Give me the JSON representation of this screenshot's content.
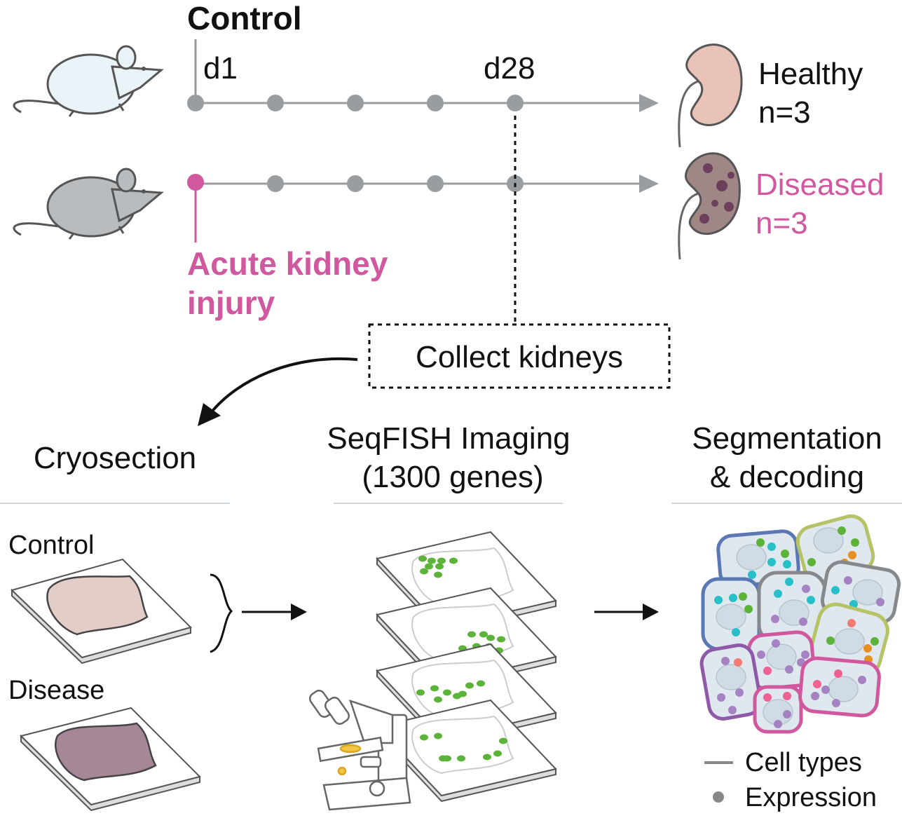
{
  "timeline": {
    "control_label": "Control",
    "day_start": "d1",
    "day_end": "d28",
    "injury_label_line1": "Acute kidney",
    "injury_label_line2": "injury",
    "collect_label": "Collect kidneys"
  },
  "outcomes": {
    "healthy_label": "Healthy",
    "healthy_n": "n=3",
    "diseased_label": "Diseased",
    "diseased_n": "n=3"
  },
  "steps": {
    "cryosection": "Cryosection",
    "seqfish_line1": "SeqFISH Imaging",
    "seqfish_line2": "(1300 genes)",
    "segmentation_line1": "Segmentation",
    "segmentation_line2": "& decoding"
  },
  "samples": {
    "control": "Control",
    "disease": "Disease"
  },
  "legend": {
    "cell_types": "Cell types",
    "expression": "Expression"
  },
  "colors": {
    "injury": "#d0589e",
    "timeline_gray": "#9a9d9f",
    "control_tissue": "#e3cdc9",
    "disease_tissue": "#a58797",
    "spot_green": "#5cb33a",
    "cell_fill": "#dfe8ef"
  }
}
